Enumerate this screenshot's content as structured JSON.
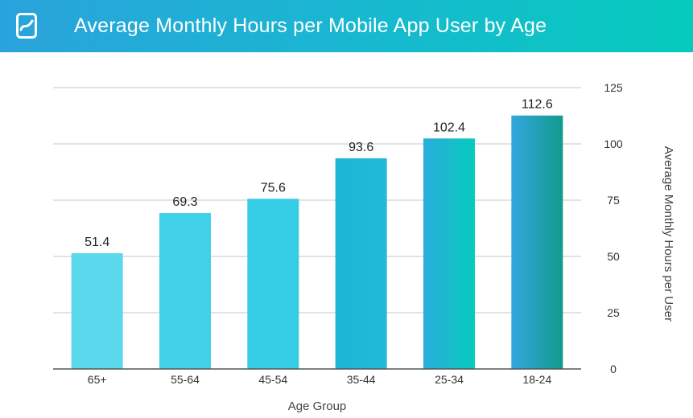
{
  "header": {
    "title": "Average Monthly Hours per Mobile App User by Age",
    "logo_icon": "brand-logo-icon",
    "background_colors": [
      "#2aa3dc",
      "#05cbbd"
    ]
  },
  "chart_data": {
    "type": "bar",
    "categories": [
      "65+",
      "55-64",
      "45-54",
      "35-44",
      "25-34",
      "18-24"
    ],
    "values": [
      51.4,
      69.3,
      75.6,
      93.6,
      102.4,
      112.6
    ],
    "value_labels": [
      "51.4",
      "69.3",
      "75.6",
      "93.6",
      "102.4",
      "112.6"
    ],
    "title": "Average Monthly Hours per Mobile App User by Age",
    "xlabel": "Age Group",
    "ylabel": "Average Monthly Hours per User",
    "ylim": [
      0,
      125
    ],
    "yticks": [
      0,
      25,
      50,
      75,
      100,
      125
    ],
    "y_axis_position": "right",
    "grid": true,
    "bar_colors": [
      [
        "#5ad8ec",
        "#5ad8ec"
      ],
      [
        "#42d0e8",
        "#42d0e8"
      ],
      [
        "#35cce6",
        "#35cce6"
      ],
      [
        "#1cb6d6",
        "#22bad8"
      ],
      [
        "#2aaedc",
        "#06cabc"
      ],
      [
        "#33a6df",
        "#119b8c"
      ]
    ]
  }
}
